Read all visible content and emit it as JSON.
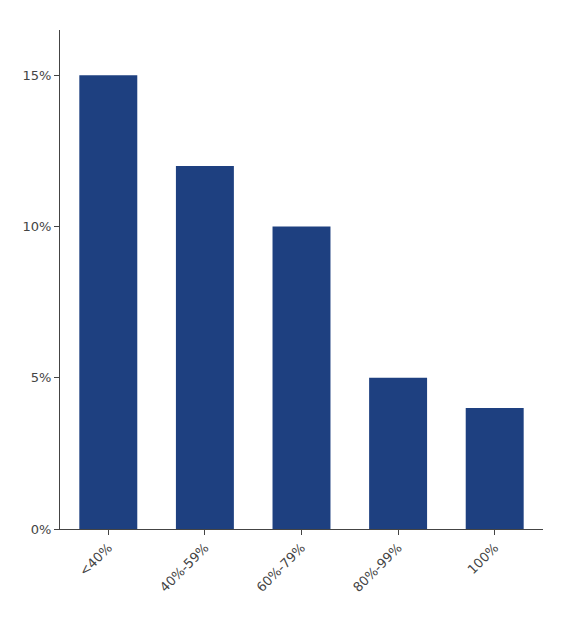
{
  "chart_data": {
    "type": "bar",
    "categories": [
      "<40%",
      "40%-59%",
      "60%-79%",
      "80%-99%",
      "100%"
    ],
    "values": [
      0.15,
      0.12,
      0.1,
      0.05,
      0.04
    ],
    "color": "#1e4080",
    "ylim": [
      0,
      0.165
    ],
    "yticks": [
      {
        "value": 0.0,
        "label": "0%"
      },
      {
        "value": 0.05,
        "label": "5%"
      },
      {
        "value": 0.1,
        "label": "10%"
      },
      {
        "value": 0.15,
        "label": "15%"
      }
    ],
    "grid": false
  }
}
